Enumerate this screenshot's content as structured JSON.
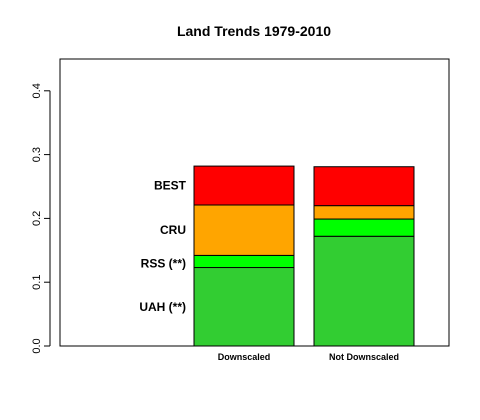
{
  "chart_data": {
    "type": "bar",
    "stacked": true,
    "title": "Land Trends 1979-2010",
    "categories": [
      "Downscaled",
      "Not Downscaled"
    ],
    "ylim": [
      0,
      0.45
    ],
    "yticks": [
      "0.0",
      "0.1",
      "0.2",
      "0.3",
      "0.4"
    ],
    "ytick_values": [
      0,
      0.1,
      0.2,
      0.3,
      0.4
    ],
    "grid": false,
    "legend": "labels-left-of-first-bar",
    "series": [
      {
        "name": "UAH (**)",
        "color": "#32cd32",
        "values": [
          0.123,
          0.172
        ]
      },
      {
        "name": "RSS (**)",
        "color": "#00ff00",
        "values": [
          0.019,
          0.027
        ]
      },
      {
        "name": "CRU",
        "color": "#ffa500",
        "values": [
          0.079,
          0.021
        ]
      },
      {
        "name": "BEST",
        "color": "#ff0000",
        "values": [
          0.061,
          0.061
        ]
      }
    ]
  }
}
